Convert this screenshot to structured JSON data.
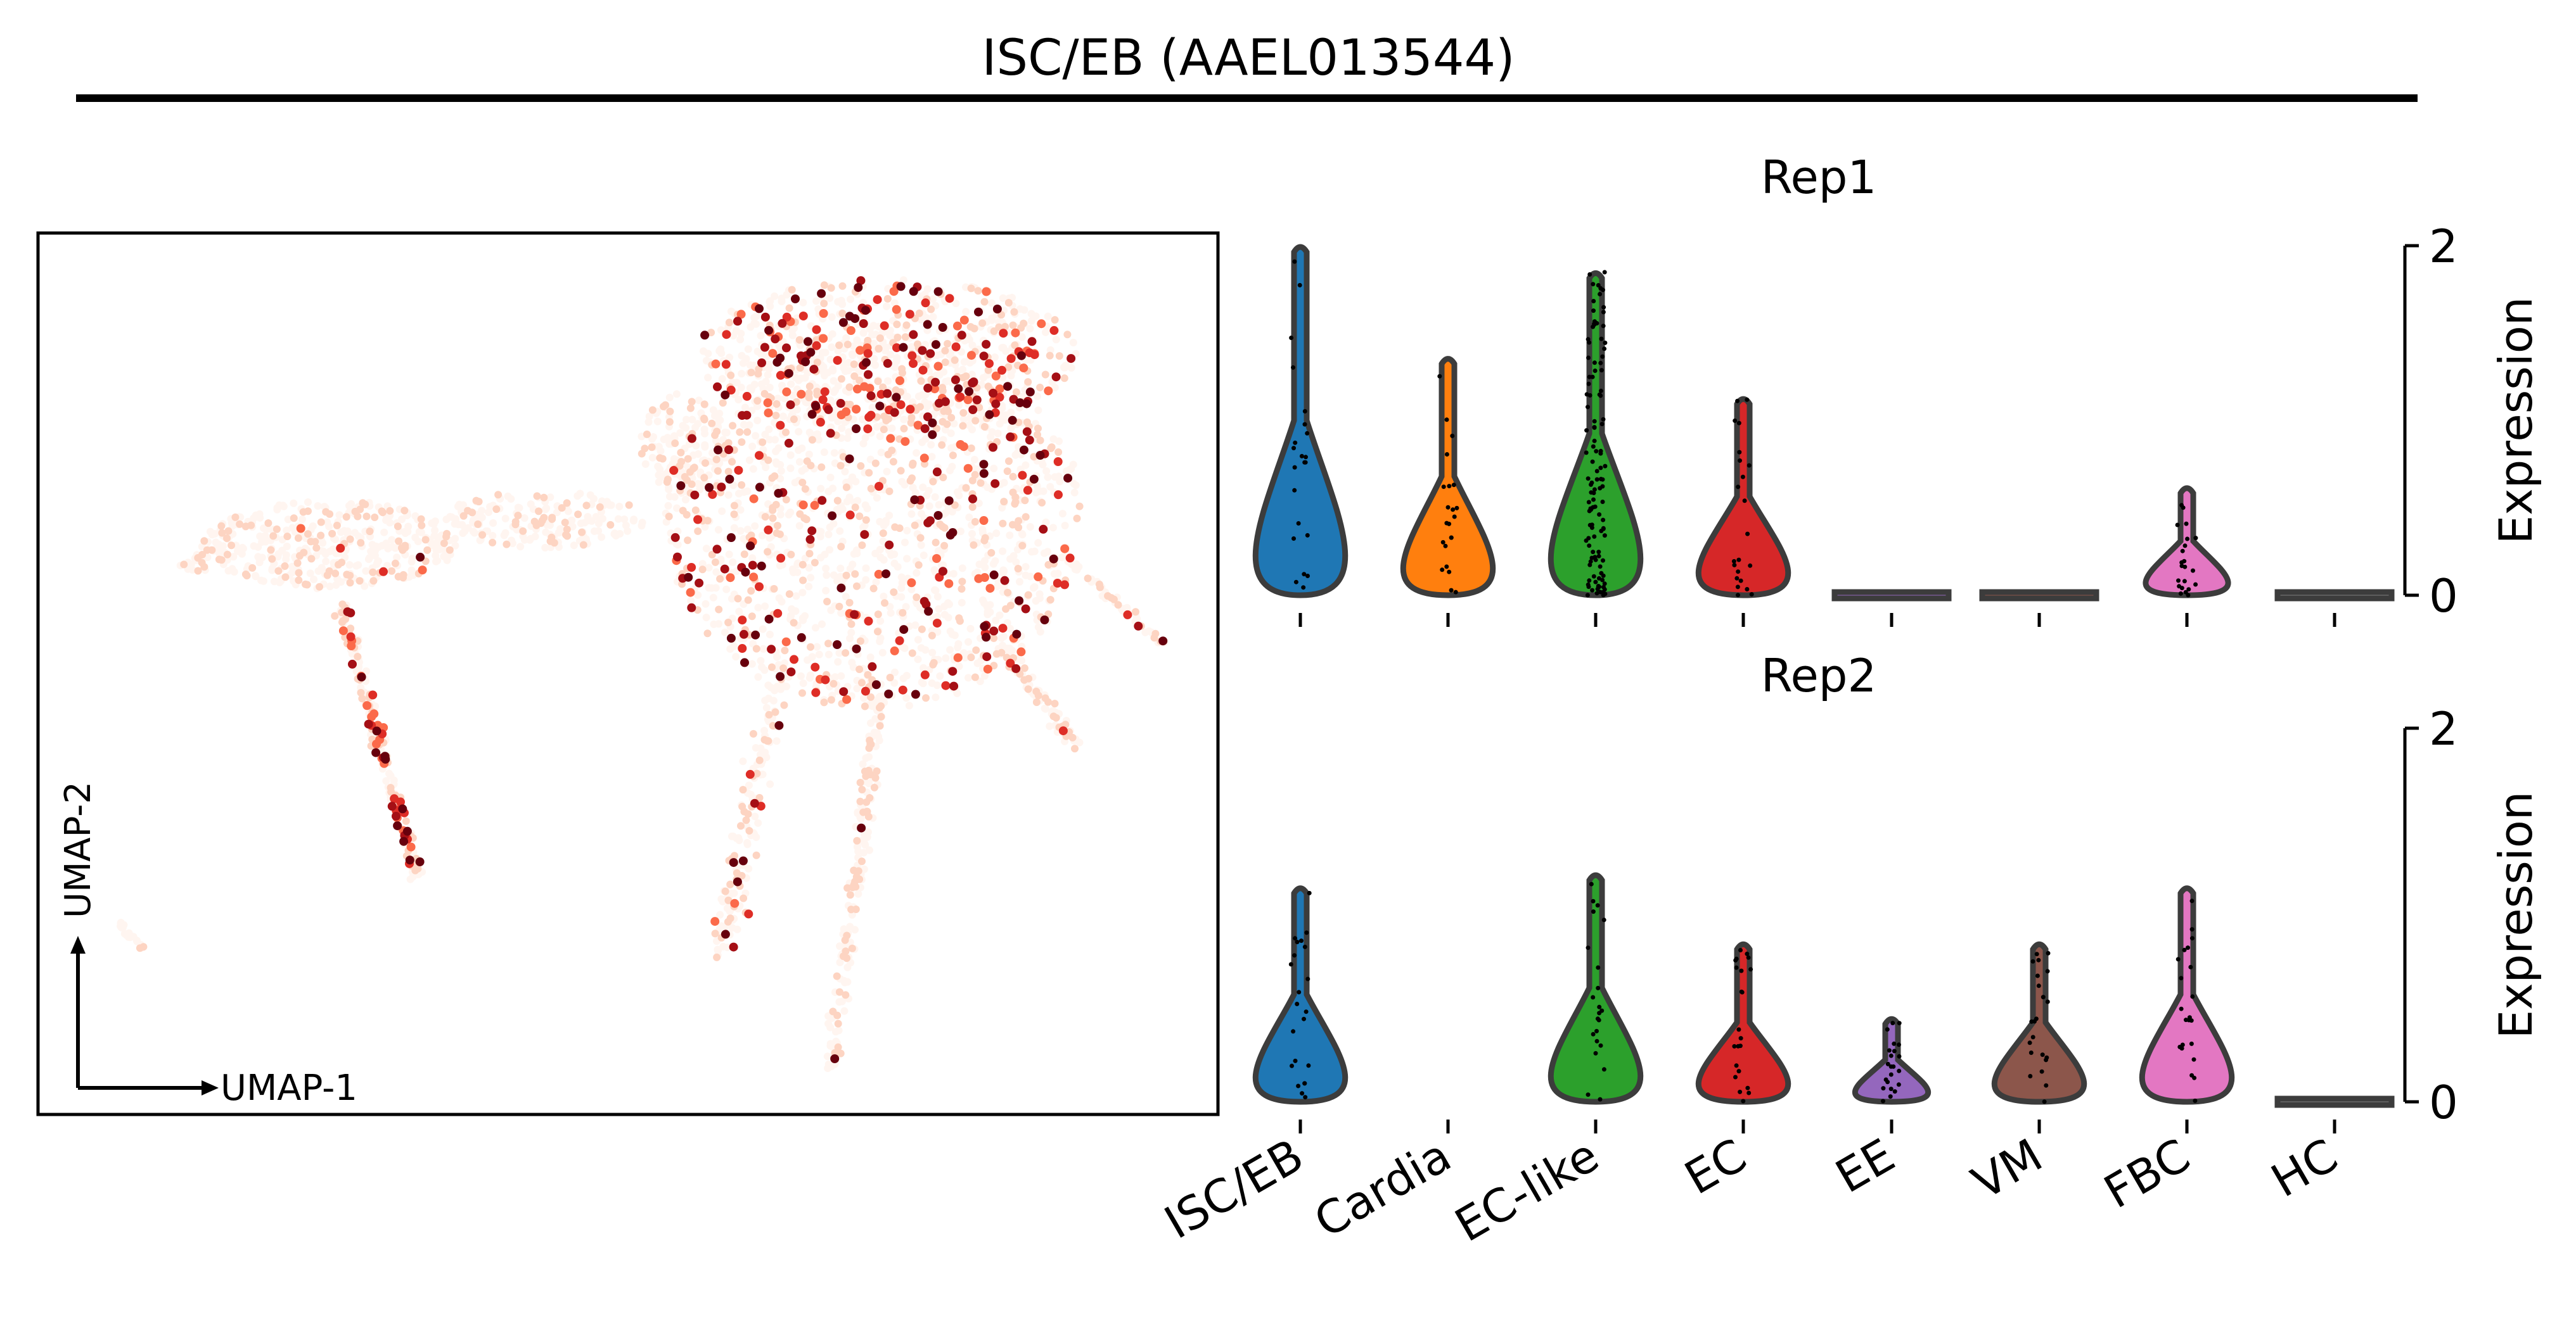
{
  "figure": {
    "title": "ISC/EB (AAEL013544)"
  },
  "umap": {
    "x_axis_label": "UMAP-1",
    "y_axis_label": "UMAP-2",
    "colormap": [
      "#fff5f0",
      "#fdd4c2",
      "#fc9272",
      "#fb6a4a",
      "#de2d26",
      "#a50f15",
      "#67000d"
    ]
  },
  "chart_data": [
    {
      "type": "scatter",
      "title": "",
      "xlabel": "UMAP-1",
      "ylabel": "UMAP-2",
      "description_color": "gene expression (Reds colormap)"
    },
    {
      "type": "violin",
      "title": "Rep1",
      "ylabel": "Expression",
      "ylim": [
        0,
        2
      ],
      "yticks": [
        0,
        2
      ],
      "categories": [
        "ISC/EB",
        "Cardia",
        "EC-like",
        "EC",
        "EE",
        "VM",
        "FBC",
        "HC"
      ],
      "colors": [
        "#1f77b4",
        "#ff7f0e",
        "#2ca02c",
        "#d62728",
        "#9467bd",
        "#8c564b",
        "#e377c2",
        "#7f7f7f"
      ],
      "max_values": [
        2.0,
        1.36,
        1.85,
        1.13,
        0.0,
        0.0,
        0.62,
        0.0
      ],
      "median_values": [
        0.0,
        0.0,
        0.0,
        0.0,
        0.0,
        0.0,
        0.0,
        0.0
      ]
    },
    {
      "type": "violin",
      "title": "Rep2",
      "ylabel": "Expression",
      "ylim": [
        0,
        2
      ],
      "yticks": [
        0,
        2
      ],
      "categories": [
        "ISC/EB",
        "Cardia",
        "EC-like",
        "EC",
        "EE",
        "VM",
        "FBC",
        "HC"
      ],
      "colors": [
        "#1f77b4",
        "#ff7f0e",
        "#2ca02c",
        "#d62728",
        "#9467bd",
        "#8c564b",
        "#e377c2",
        "#7f7f7f"
      ],
      "max_values": [
        1.15,
        null,
        1.22,
        0.85,
        0.45,
        0.85,
        1.15,
        0.0
      ],
      "median_values": [
        0.0,
        null,
        0.0,
        0.0,
        0.0,
        0.0,
        0.0,
        0.0
      ]
    }
  ]
}
